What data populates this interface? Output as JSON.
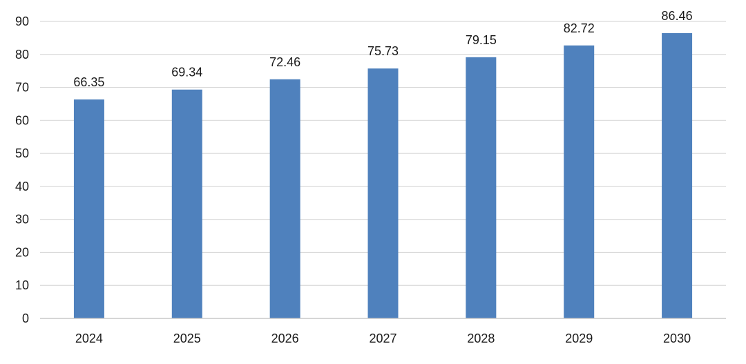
{
  "chart_data": {
    "type": "bar",
    "categories": [
      "2024",
      "2025",
      "2026",
      "2027",
      "2028",
      "2029",
      "2030"
    ],
    "values": [
      66.35,
      69.34,
      72.46,
      75.73,
      79.15,
      82.72,
      86.46
    ],
    "data_labels": [
      "66.35",
      "69.34",
      "72.46",
      "75.73",
      "79.15",
      "82.72",
      "86.46"
    ],
    "title": "",
    "xlabel": "",
    "ylabel": "",
    "ylim": [
      0,
      90
    ],
    "yticks": [
      0,
      10,
      20,
      30,
      40,
      50,
      60,
      70,
      80,
      90
    ],
    "grid": true,
    "legend": "none",
    "colors": {
      "bar": "#4f81bd",
      "grid": "#d9d9d9",
      "axis": "#c8c8c8"
    }
  }
}
